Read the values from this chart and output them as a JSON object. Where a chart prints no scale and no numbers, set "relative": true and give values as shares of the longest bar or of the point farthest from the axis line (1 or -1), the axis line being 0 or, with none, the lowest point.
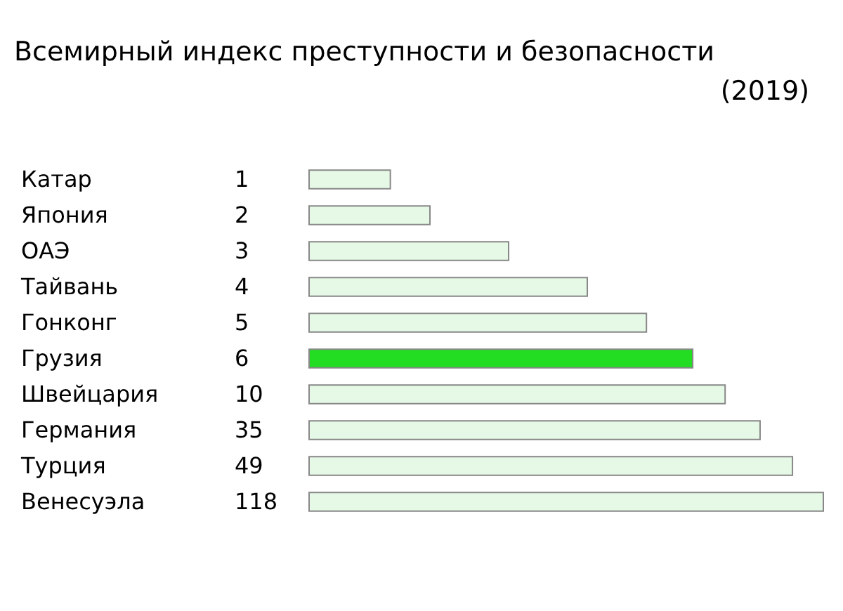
{
  "chart_data": {
    "type": "bar",
    "orientation": "horizontal",
    "relative": true,
    "title": "Всемирный индекс преступности и безопасности",
    "subtitle": "(2019)",
    "categories": [
      "Катар",
      "Япония",
      "ОАЭ",
      "Тайвань",
      "Гонконг",
      "Грузия",
      "Швейцария",
      "Германия",
      "Турция",
      "Венесуэла"
    ],
    "values": [
      0.158,
      0.235,
      0.388,
      0.541,
      0.656,
      0.746,
      0.809,
      0.877,
      0.94,
      1.0
    ],
    "annotations": [
      "1",
      "2",
      "3",
      "4",
      "5",
      "6",
      "10",
      "35",
      "49",
      "118"
    ],
    "colors": [
      "#e6f9e6",
      "#e6f9e6",
      "#e6f9e6",
      "#e6f9e6",
      "#e6f9e6",
      "#22dd22",
      "#e6f9e6",
      "#e6f9e6",
      "#e6f9e6",
      "#e6f9e6"
    ]
  }
}
